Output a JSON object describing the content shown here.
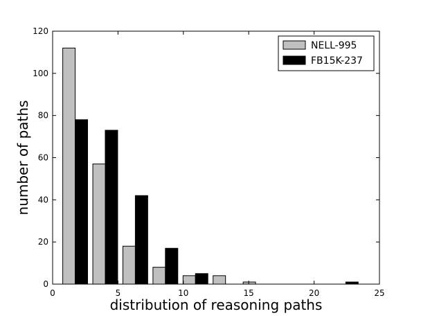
{
  "chart_data": {
    "type": "bar",
    "xlabel": "distribution of reasoning paths",
    "ylabel": "number of paths",
    "xlim": [
      0,
      25
    ],
    "ylim": [
      0,
      120
    ],
    "xticks": [
      "0",
      "5",
      "10",
      "15",
      "20",
      "25"
    ],
    "yticks": [
      "0",
      "20",
      "40",
      "60",
      "80",
      "100",
      "120"
    ],
    "legend_position": "top-right",
    "grid": false,
    "series": [
      {
        "name": "NELL-995",
        "color": "#c0c0c0",
        "x": [
          1.25,
          3.55,
          5.85,
          8.15,
          10.45,
          12.75,
          15.05,
          17.35,
          19.65,
          21.95
        ],
        "values": [
          112,
          57,
          18,
          8,
          4,
          4,
          1,
          0,
          0,
          0
        ]
      },
      {
        "name": "FB15K-237",
        "color": "#000000",
        "x": [
          2.2,
          4.5,
          6.8,
          9.1,
          11.4,
          13.7,
          16.0,
          18.3,
          20.6,
          22.9
        ],
        "values": [
          78,
          73,
          42,
          17,
          5,
          0,
          0,
          0,
          0,
          1
        ]
      }
    ],
    "bar_width": 0.95
  }
}
